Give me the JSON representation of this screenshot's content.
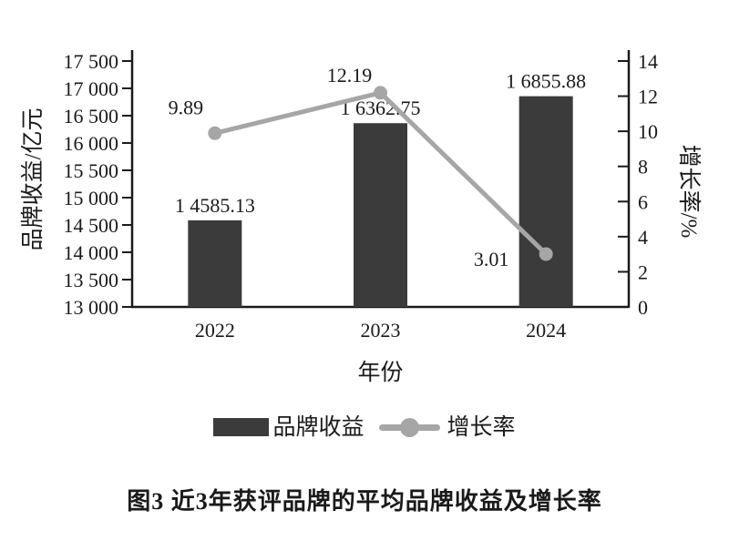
{
  "chart_data": {
    "type": "bar+line combo",
    "categories": [
      "2022",
      "2023",
      "2024"
    ],
    "series": [
      {
        "name": "品牌收益",
        "type": "bar",
        "axis": "left",
        "values": [
          14585.13,
          16362.75,
          16855.88
        ],
        "labels": [
          "1 4585.13",
          "1 6362.75",
          "1 6855.88"
        ]
      },
      {
        "name": "增长率",
        "type": "line",
        "axis": "right",
        "values": [
          9.89,
          12.19,
          3.01
        ],
        "labels": [
          "9.89",
          "12.19",
          "3.01"
        ],
        "label_offsets": [
          {
            "dx": -32,
            "dy": -21
          },
          {
            "dx": -34,
            "dy": -12
          },
          {
            "dx": -60,
            "dy": 13
          }
        ]
      }
    ],
    "left_axis": {
      "label": "品牌收益/亿元",
      "min": 13000,
      "max": 17500,
      "step": 500,
      "ticks": [
        "13 000",
        "13 500",
        "14 000",
        "14 500",
        "15 000",
        "15 500",
        "16 000",
        "16 500",
        "17 000",
        "17 500"
      ]
    },
    "right_axis": {
      "label": "增长率/%",
      "min": 0,
      "max": 14,
      "step": 2,
      "ticks": [
        "0",
        "2",
        "4",
        "6",
        "8",
        "10",
        "12",
        "14"
      ]
    },
    "x_axis": {
      "label": "年份"
    },
    "grid": false,
    "legend_position": "bottom"
  },
  "legend": {
    "items": [
      {
        "label": "品牌收益",
        "swatch": "bar"
      },
      {
        "label": "增长率",
        "swatch": "line"
      }
    ]
  },
  "caption": "图3  近3年获评品牌的平均品牌收益及增长率",
  "colors": {
    "bar": "#3b3b3b",
    "line": "#a6a6a6",
    "axis": "#1a1a1a",
    "text": "#1a1a1a",
    "background": "#ffffff"
  }
}
